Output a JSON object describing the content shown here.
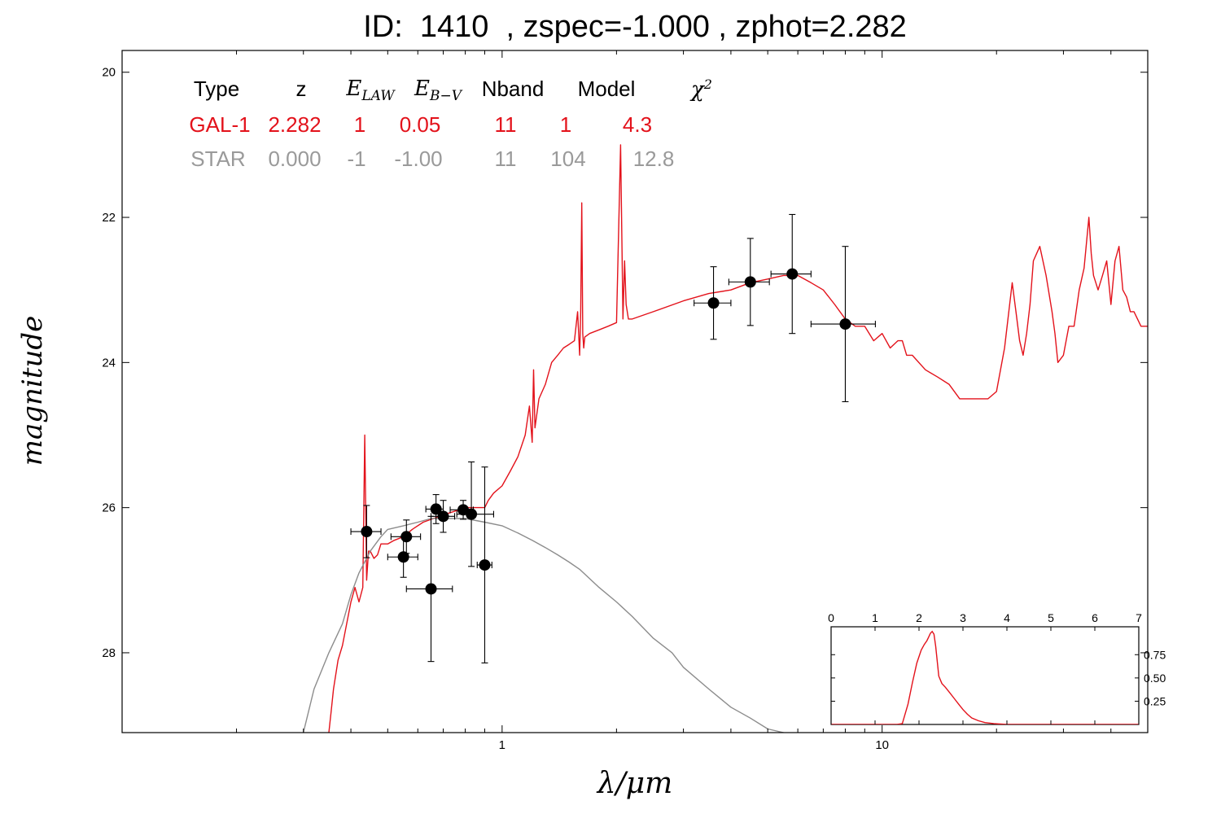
{
  "title": "ID:  1410  , zspec=-1.000 , zphot=2.282",
  "ylabel": "magnitude",
  "xlabel": "λ/μm",
  "table": {
    "headers": [
      "Type",
      "z",
      "E_LAW",
      "E_B-V",
      "Nband",
      "Model",
      "χ2"
    ],
    "rows": [
      {
        "class": "gal",
        "values": [
          "GAL-1",
          "2.282",
          "1",
          "0.05",
          "11",
          "1",
          "4.3"
        ]
      },
      {
        "class": "star",
        "values": [
          "STAR",
          "0.000",
          "-1",
          "-1.00",
          "11",
          "104",
          "12.8"
        ]
      }
    ]
  },
  "colors": {
    "galaxy": "#e3121b",
    "star": "#8c8c8c",
    "points": "#000000",
    "pdz": "#e3121b"
  },
  "chart_data": [
    {
      "type": "line",
      "title": "ID:  1410  , zspec=-1.000 , zphot=2.282",
      "xlabel": "λ/μm",
      "ylabel": "magnitude",
      "xscale": "log",
      "xlim": [
        0.1,
        50
      ],
      "ylim": [
        29.1,
        19.7
      ],
      "xticks": [
        {
          "v": 1,
          "label": "1"
        },
        {
          "v": 10,
          "label": "10"
        }
      ],
      "yticks": [
        {
          "v": 20,
          "label": "20"
        },
        {
          "v": 22,
          "label": "22"
        },
        {
          "v": 24,
          "label": "24"
        },
        {
          "v": 26,
          "label": "26"
        },
        {
          "v": 28,
          "label": "28"
        }
      ],
      "grid": false,
      "series": [
        {
          "name": "GAL-1",
          "color": "#e3121b",
          "x": [
            0.35,
            0.355,
            0.36,
            0.37,
            0.38,
            0.39,
            0.4,
            0.41,
            0.42,
            0.43,
            0.435,
            0.44,
            0.445,
            0.45,
            0.46,
            0.47,
            0.48,
            0.5,
            0.52,
            0.55,
            0.58,
            0.62,
            0.66,
            0.7,
            0.75,
            0.8,
            0.85,
            0.88,
            0.9,
            0.92,
            0.95,
            1.0,
            1.05,
            1.1,
            1.15,
            1.18,
            1.2,
            1.21,
            1.22,
            1.25,
            1.3,
            1.35,
            1.4,
            1.45,
            1.5,
            1.55,
            1.58,
            1.6,
            1.61,
            1.62,
            1.63,
            1.64,
            1.65,
            1.7,
            1.8,
            1.9,
            2.0,
            2.05,
            2.08,
            2.1,
            2.12,
            2.15,
            2.2,
            2.5,
            3.0,
            3.5,
            4.0,
            4.5,
            5.0,
            5.5,
            6.0,
            6.5,
            7.0,
            7.5,
            8.0,
            8.5,
            9.0,
            9.5,
            10.0,
            10.5,
            11.0,
            11.3,
            11.6,
            12.0,
            13.0,
            14.0,
            15.0,
            16.0,
            17.0,
            18.0,
            19.0,
            20.0,
            21.0,
            22.0,
            22.5,
            23.0,
            23.5,
            24.0,
            24.5,
            25.0,
            26.0,
            27.0,
            28.0,
            28.5,
            29.0,
            30.0,
            31.0,
            32.0,
            33.0,
            34.0,
            35.0,
            35.5,
            36.0,
            37.0,
            38.0,
            39.0,
            40.0,
            41.0,
            42.0,
            43.0,
            44.0,
            45.0,
            46.0,
            48.0,
            50.0
          ],
          "y": [
            29.1,
            28.8,
            28.5,
            28.1,
            27.9,
            27.6,
            27.3,
            27.1,
            27.3,
            27.1,
            25.0,
            27.0,
            26.6,
            26.6,
            26.7,
            26.65,
            26.5,
            26.5,
            26.45,
            26.4,
            26.3,
            26.2,
            26.15,
            26.1,
            26.05,
            26.0,
            26.0,
            26.0,
            26.0,
            25.9,
            25.8,
            25.7,
            25.5,
            25.3,
            25.0,
            24.6,
            25.1,
            24.1,
            24.9,
            24.5,
            24.3,
            24.0,
            23.9,
            23.8,
            23.75,
            23.7,
            23.3,
            23.9,
            23.3,
            21.8,
            23.6,
            23.8,
            23.65,
            23.6,
            23.55,
            23.5,
            23.45,
            21.0,
            23.4,
            22.6,
            23.2,
            23.4,
            23.4,
            23.3,
            23.15,
            23.05,
            23.0,
            22.9,
            22.85,
            22.8,
            22.8,
            22.9,
            23.0,
            23.2,
            23.4,
            23.5,
            23.5,
            23.7,
            23.6,
            23.8,
            23.7,
            23.7,
            23.9,
            23.9,
            24.1,
            24.2,
            24.3,
            24.5,
            24.5,
            24.5,
            24.5,
            24.4,
            23.8,
            22.9,
            23.3,
            23.7,
            23.9,
            23.6,
            23.2,
            22.6,
            22.4,
            22.8,
            23.3,
            23.6,
            24.0,
            23.9,
            23.5,
            23.5,
            23.0,
            22.7,
            22.0,
            22.5,
            22.8,
            23.0,
            22.8,
            22.6,
            23.2,
            22.6,
            22.4,
            23.0,
            23.1,
            23.3,
            23.3,
            23.5,
            23.5
          ],
          "kind": "line"
        },
        {
          "name": "STAR",
          "color": "#8c8c8c",
          "x": [
            0.3,
            0.32,
            0.35,
            0.38,
            0.4,
            0.42,
            0.45,
            0.48,
            0.5,
            0.55,
            0.6,
            0.65,
            0.7,
            0.75,
            0.8,
            0.9,
            1.0,
            1.1,
            1.2,
            1.3,
            1.4,
            1.5,
            1.6,
            1.8,
            2.0,
            2.2,
            2.5,
            2.8,
            3.0,
            3.5,
            4.0,
            4.5,
            5.0,
            5.5,
            6.0,
            6.5,
            7.0
          ],
          "y": [
            29.1,
            28.5,
            28.0,
            27.6,
            27.2,
            26.9,
            26.6,
            26.4,
            26.3,
            26.25,
            26.2,
            26.15,
            26.15,
            26.15,
            26.15,
            26.2,
            26.25,
            26.35,
            26.45,
            26.55,
            26.65,
            26.75,
            26.85,
            27.1,
            27.3,
            27.5,
            27.8,
            28.0,
            28.2,
            28.5,
            28.75,
            28.9,
            29.05,
            29.1,
            29.2,
            29.3,
            29.4
          ],
          "kind": "line"
        },
        {
          "name": "observed",
          "color": "#000000",
          "kind": "points",
          "points": [
            {
              "x": 0.44,
              "y": 26.33,
              "xerr": [
                0.4,
                0.48
              ],
              "yerr": [
                25.97,
                26.69
              ]
            },
            {
              "x": 0.55,
              "y": 26.68,
              "xerr": [
                0.5,
                0.6
              ],
              "yerr": [
                26.4,
                26.96
              ]
            },
            {
              "x": 0.56,
              "y": 26.4,
              "xerr": [
                0.51,
                0.61
              ],
              "yerr": [
                26.17,
                26.63
              ]
            },
            {
              "x": 0.65,
              "y": 27.12,
              "xerr": [
                0.56,
                0.74
              ],
              "yerr": [
                26.12,
                28.12
              ]
            },
            {
              "x": 0.67,
              "y": 26.02,
              "xerr": [
                0.63,
                0.7
              ],
              "yerr": [
                25.82,
                26.22
              ]
            },
            {
              "x": 0.7,
              "y": 26.12,
              "xerr": [
                0.65,
                0.75
              ],
              "yerr": [
                25.9,
                26.34
              ]
            },
            {
              "x": 0.79,
              "y": 26.03,
              "xerr": [
                0.73,
                0.84
              ],
              "yerr": [
                25.9,
                26.16
              ]
            },
            {
              "x": 0.83,
              "y": 26.09,
              "xerr": [
                0.76,
                0.95
              ],
              "yerr": [
                25.37,
                26.81
              ]
            },
            {
              "x": 0.9,
              "y": 26.79,
              "xerr": [
                0.86,
                0.94
              ],
              "yerr": [
                25.44,
                28.14
              ]
            },
            {
              "x": 3.6,
              "y": 23.18,
              "xerr": [
                3.2,
                4.0
              ],
              "yerr": [
                22.68,
                23.68
              ]
            },
            {
              "x": 4.5,
              "y": 22.89,
              "xerr": [
                3.95,
                5.05
              ],
              "yerr": [
                22.29,
                23.49
              ]
            },
            {
              "x": 5.8,
              "y": 22.78,
              "xerr": [
                5.1,
                6.5
              ],
              "yerr": [
                21.96,
                23.6
              ]
            },
            {
              "x": 8.0,
              "y": 23.47,
              "xerr": [
                6.5,
                9.6
              ],
              "yerr": [
                22.4,
                24.54
              ]
            }
          ]
        }
      ]
    },
    {
      "type": "line",
      "title": "",
      "xlim": [
        0,
        7
      ],
      "ylim": [
        0,
        1.05
      ],
      "xticks": [
        0,
        1,
        2,
        3,
        4,
        5,
        6,
        7
      ],
      "yticks": [
        {
          "v": 0.25,
          "label": "0.25"
        },
        {
          "v": 0.5,
          "label": "0.50"
        },
        {
          "v": 0.75,
          "label": "0.75"
        }
      ],
      "series": [
        {
          "color": "#e3121b",
          "x": [
            0,
            1.5,
            1.62,
            1.75,
            1.85,
            1.95,
            2.05,
            2.12,
            2.18,
            2.22,
            2.26,
            2.3,
            2.34,
            2.38,
            2.45,
            2.52,
            2.6,
            2.7,
            2.8,
            2.9,
            3.0,
            3.1,
            3.2,
            3.35,
            3.5,
            3.7,
            4.0,
            5.0,
            7.0
          ],
          "y": [
            0,
            0,
            0.01,
            0.22,
            0.45,
            0.66,
            0.8,
            0.86,
            0.9,
            0.94,
            0.98,
            1.0,
            0.97,
            0.84,
            0.52,
            0.44,
            0.4,
            0.34,
            0.28,
            0.22,
            0.16,
            0.11,
            0.07,
            0.04,
            0.02,
            0.01,
            0.0,
            0,
            0
          ]
        }
      ]
    }
  ]
}
